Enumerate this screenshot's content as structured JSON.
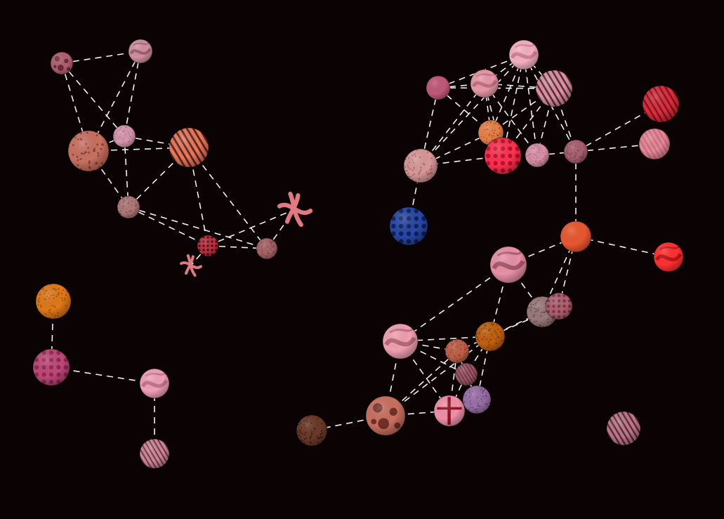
{
  "graph": {
    "background": "#0b0203",
    "edge_color": "#ffffff",
    "nodes": [
      {
        "id": "a1",
        "texture": "spots",
        "c1": "#b06070",
        "c2": "#5a1e2a"
      },
      {
        "id": "a2",
        "texture": "swirl",
        "c1": "#d090a0",
        "c2": "#8a4a5a"
      },
      {
        "id": "a3",
        "texture": "speckle",
        "c1": "#c87060",
        "c2": "#7a2e28"
      },
      {
        "id": "a4",
        "texture": "speckle",
        "c1": "#d898b0",
        "c2": "#a06070"
      },
      {
        "id": "a5",
        "texture": "stripes",
        "c1": "#e8785a",
        "c2": "#3a1010"
      },
      {
        "id": "a6",
        "texture": "speckle",
        "c1": "#b07878",
        "c2": "#6a3838"
      },
      {
        "id": "a7",
        "texture": "dots",
        "c1": "#c03040",
        "c2": "#2a0608"
      },
      {
        "id": "a8",
        "texture": "speckle",
        "c1": "#a86468",
        "c2": "#5a2a30"
      },
      {
        "id": "a9",
        "texture": "knot",
        "c1": "#e07a80",
        "c2": "#0b0203"
      },
      {
        "id": "a10",
        "texture": "knot",
        "c1": "#e07a80",
        "c2": "#0b0203"
      },
      {
        "id": "b1",
        "texture": "speckle",
        "c1": "#e07818",
        "c2": "#a04808"
      },
      {
        "id": "b2",
        "texture": "dots",
        "c1": "#c04878",
        "c2": "#7a2048"
      },
      {
        "id": "b3",
        "texture": "swirl",
        "c1": "#f0a0b8",
        "c2": "#b06078"
      },
      {
        "id": "b4",
        "texture": "stripes",
        "c1": "#d08898",
        "c2": "#5a2838"
      },
      {
        "id": "c1",
        "texture": "swirl",
        "c1": "#f4b0c0",
        "c2": "#c07080"
      },
      {
        "id": "c2",
        "texture": "plain",
        "c1": "#c05878",
        "c2": "#702040"
      },
      {
        "id": "c3",
        "texture": "swirl",
        "c1": "#e898a8",
        "c2": "#b06070"
      },
      {
        "id": "c4",
        "texture": "stripes",
        "c1": "#e090a0",
        "c2": "#2a1820"
      },
      {
        "id": "c5",
        "texture": "stripes",
        "c1": "#d83040",
        "c2": "#7a0810"
      },
      {
        "id": "c6",
        "texture": "stripes",
        "c1": "#e88898",
        "c2": "#c06878"
      },
      {
        "id": "c7",
        "texture": "speckle",
        "c1": "#e88048",
        "c2": "#8a3818"
      },
      {
        "id": "c8",
        "texture": "dots",
        "c1": "#ff3050",
        "c2": "#a00820"
      },
      {
        "id": "c9",
        "texture": "speckle",
        "c1": "#d890a8",
        "c2": "#a06070"
      },
      {
        "id": "c10",
        "texture": "speckle",
        "c1": "#a86070",
        "c2": "#6a3040"
      },
      {
        "id": "c11",
        "texture": "speckle",
        "c1": "#d89898",
        "c2": "#9a5858"
      },
      {
        "id": "c12",
        "texture": "dots",
        "c1": "#2848a8",
        "c2": "#0a1438"
      },
      {
        "id": "c13",
        "texture": "plain",
        "c1": "#e85830",
        "c2": "#a02810"
      },
      {
        "id": "c14",
        "texture": "swirl",
        "c1": "#ff3030",
        "c2": "#a00810"
      },
      {
        "id": "d1",
        "texture": "swirl",
        "c1": "#e890a8",
        "c2": "#8a4050"
      },
      {
        "id": "d2",
        "texture": "speckle",
        "c1": "#9a7878",
        "c2": "#5a4040"
      },
      {
        "id": "d3",
        "texture": "dots",
        "c1": "#b06070",
        "c2": "#6a2838"
      },
      {
        "id": "d4",
        "texture": "speckle",
        "c1": "#c06010",
        "c2": "#6a2a04"
      },
      {
        "id": "d5",
        "texture": "swirl",
        "c1": "#f0a0b0",
        "c2": "#a05060"
      },
      {
        "id": "d6",
        "texture": "speckle",
        "c1": "#c06048",
        "c2": "#7a2a20"
      },
      {
        "id": "d7",
        "texture": "stripes",
        "c1": "#a05868",
        "c2": "#5a2a38"
      },
      {
        "id": "d8",
        "texture": "speckle",
        "c1": "#9a70a8",
        "c2": "#5a3868"
      },
      {
        "id": "d9",
        "texture": "spots",
        "c1": "#c87060",
        "c2": "#5a2018"
      },
      {
        "id": "d10",
        "texture": "cross",
        "c1": "#f090a8",
        "c2": "#901020"
      },
      {
        "id": "d11",
        "texture": "speckle",
        "c1": "#6a3828",
        "c2": "#2a1008"
      },
      {
        "id": "d12",
        "texture": "stripes",
        "c1": "#c07888",
        "c2": "#3a1828"
      }
    ],
    "edges": [
      [
        "a1",
        "a2"
      ],
      [
        "a1",
        "a4"
      ],
      [
        "a1",
        "a3"
      ],
      [
        "a2",
        "a4"
      ],
      [
        "a2",
        "a3"
      ],
      [
        "a3",
        "a4"
      ],
      [
        "a3",
        "a5"
      ],
      [
        "a3",
        "a6"
      ],
      [
        "a4",
        "a5"
      ],
      [
        "a4",
        "a6"
      ],
      [
        "a5",
        "a6"
      ],
      [
        "a5",
        "a7"
      ],
      [
        "a6",
        "a7"
      ],
      [
        "a6",
        "a8"
      ],
      [
        "a7",
        "a8"
      ],
      [
        "a7",
        "a9"
      ],
      [
        "a7",
        "a10"
      ],
      [
        "a8",
        "a9"
      ],
      [
        "a5",
        "a8"
      ],
      [
        "b1",
        "b2"
      ],
      [
        "b2",
        "b3"
      ],
      [
        "b3",
        "b4"
      ],
      [
        "c2",
        "c1"
      ],
      [
        "c2",
        "c3"
      ],
      [
        "c2",
        "c4"
      ],
      [
        "c2",
        "c7"
      ],
      [
        "c2",
        "c11"
      ],
      [
        "c1",
        "c3"
      ],
      [
        "c1",
        "c4"
      ],
      [
        "c1",
        "c7"
      ],
      [
        "c1",
        "c8"
      ],
      [
        "c1",
        "c9"
      ],
      [
        "c1",
        "c10"
      ],
      [
        "c1",
        "c11"
      ],
      [
        "c3",
        "c4"
      ],
      [
        "c3",
        "c7"
      ],
      [
        "c3",
        "c8"
      ],
      [
        "c3",
        "c9"
      ],
      [
        "c3",
        "c11"
      ],
      [
        "c4",
        "c7"
      ],
      [
        "c4",
        "c8"
      ],
      [
        "c4",
        "c9"
      ],
      [
        "c4",
        "c10"
      ],
      [
        "c7",
        "c8"
      ],
      [
        "c7",
        "c11"
      ],
      [
        "c8",
        "c9"
      ],
      [
        "c9",
        "c10"
      ],
      [
        "c10",
        "c5"
      ],
      [
        "c10",
        "c6"
      ],
      [
        "c10",
        "c13"
      ],
      [
        "c11",
        "c12"
      ],
      [
        "c11",
        "c8"
      ],
      [
        "c13",
        "c14"
      ],
      [
        "c13",
        "d1"
      ],
      [
        "c13",
        "d2"
      ],
      [
        "c13",
        "d3"
      ],
      [
        "d1",
        "d2"
      ],
      [
        "d1",
        "d4"
      ],
      [
        "d1",
        "d5"
      ],
      [
        "d2",
        "d3"
      ],
      [
        "d2",
        "d4"
      ],
      [
        "d3",
        "d4"
      ],
      [
        "d4",
        "d5"
      ],
      [
        "d4",
        "d6"
      ],
      [
        "d4",
        "d8"
      ],
      [
        "d4",
        "d9"
      ],
      [
        "d4",
        "d7"
      ],
      [
        "d5",
        "d6"
      ],
      [
        "d5",
        "d7"
      ],
      [
        "d5",
        "d9"
      ],
      [
        "d5",
        "d10"
      ],
      [
        "d6",
        "d7"
      ],
      [
        "d6",
        "d10"
      ],
      [
        "d7",
        "d8"
      ],
      [
        "d7",
        "d10"
      ],
      [
        "d8",
        "d10"
      ],
      [
        "d9",
        "d10"
      ],
      [
        "d9",
        "d11"
      ],
      [
        "d9",
        "d6"
      ]
    ]
  }
}
